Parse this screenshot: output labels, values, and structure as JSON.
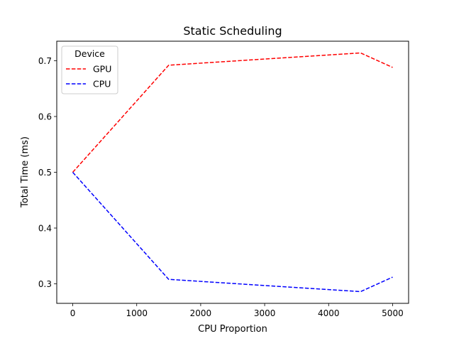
{
  "chart_data": {
    "type": "line",
    "title": "Static Scheduling",
    "xlabel": "CPU Proportion",
    "ylabel": "Total Time (ms)",
    "x": [
      0,
      1500,
      4500,
      5000
    ],
    "xlim": [
      -250,
      5250
    ],
    "ylim": [
      0.265,
      0.735
    ],
    "xticks": [
      0,
      1000,
      2000,
      3000,
      4000,
      5000
    ],
    "xtick_labels": [
      "0",
      "1000",
      "2000",
      "3000",
      "4000",
      "5000"
    ],
    "yticks": [
      0.3,
      0.4,
      0.5,
      0.6,
      0.7
    ],
    "ytick_labels": [
      "0.3",
      "0.4",
      "0.5",
      "0.6",
      "0.7"
    ],
    "grid": false,
    "legend": {
      "title": "Device",
      "placement": "top-left"
    },
    "series": [
      {
        "name": "GPU",
        "color": "#ff0000",
        "style": "dashed",
        "values": [
          0.5,
          0.692,
          0.714,
          0.688
        ]
      },
      {
        "name": "CPU",
        "color": "#0000ff",
        "style": "dashed",
        "values": [
          0.5,
          0.308,
          0.286,
          0.312
        ]
      }
    ]
  }
}
